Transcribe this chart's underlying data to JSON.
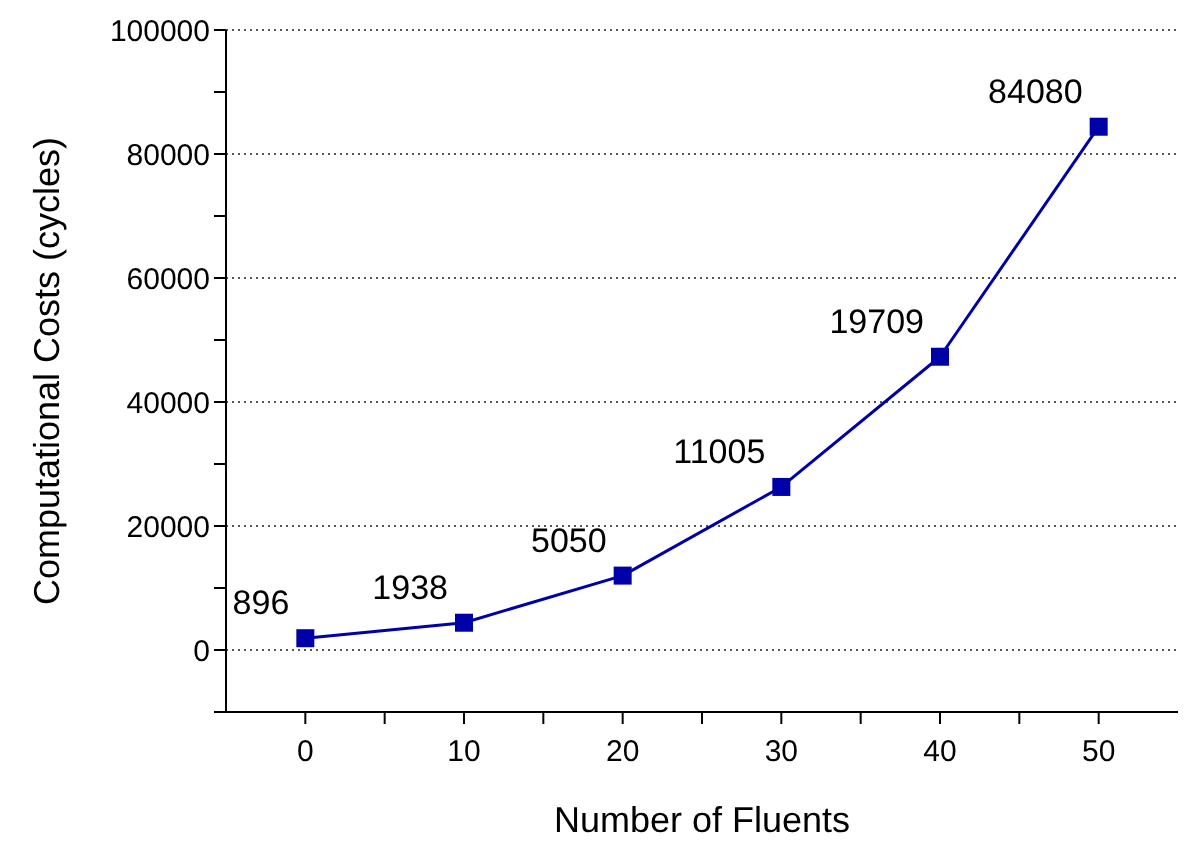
{
  "chart_data": {
    "type": "line",
    "xlabel": "Number of Fluents",
    "ylabel": "Computational Costs (cycles)",
    "x": [
      0,
      10,
      20,
      30,
      40,
      50
    ],
    "series": [
      {
        "color": "#0000a8",
        "values": [
          1900,
          4400,
          12000,
          26300,
          47300,
          84400
        ]
      }
    ],
    "annotations": [
      {
        "text": "896",
        "x": 0,
        "y": 1900
      },
      {
        "text": "1938",
        "x": 10,
        "y": 4400
      },
      {
        "text": "5050",
        "x": 20,
        "y": 12000
      },
      {
        "text": "11005",
        "x": 30,
        "y": 26300
      },
      {
        "text": "19709",
        "x": 40,
        "y": 47300
      },
      {
        "text": "84080",
        "x": 50,
        "y": 84400
      }
    ],
    "xlim": [
      -5,
      55
    ],
    "xticks": [
      0,
      {
        "value": 5,
        "label": null
      },
      10,
      {
        "value": 15,
        "label": null
      },
      20,
      {
        "value": 25,
        "label": null
      },
      30,
      {
        "value": 35,
        "label": null
      },
      40,
      {
        "value": 45,
        "label": null
      },
      50
    ],
    "ylim": [
      -10000,
      100000
    ],
    "yticks": [
      {
        "value": -10000,
        "label": null
      },
      0,
      {
        "value": 10000,
        "label": null
      },
      20000,
      {
        "value": 30000,
        "label": null
      },
      40000,
      {
        "value": 50000,
        "label": null
      },
      60000,
      {
        "value": 70000,
        "label": null
      },
      80000,
      {
        "value": 90000,
        "label": null
      },
      100000
    ],
    "grid": "y",
    "marker": "square",
    "line_style": "solid",
    "legend": false
  }
}
